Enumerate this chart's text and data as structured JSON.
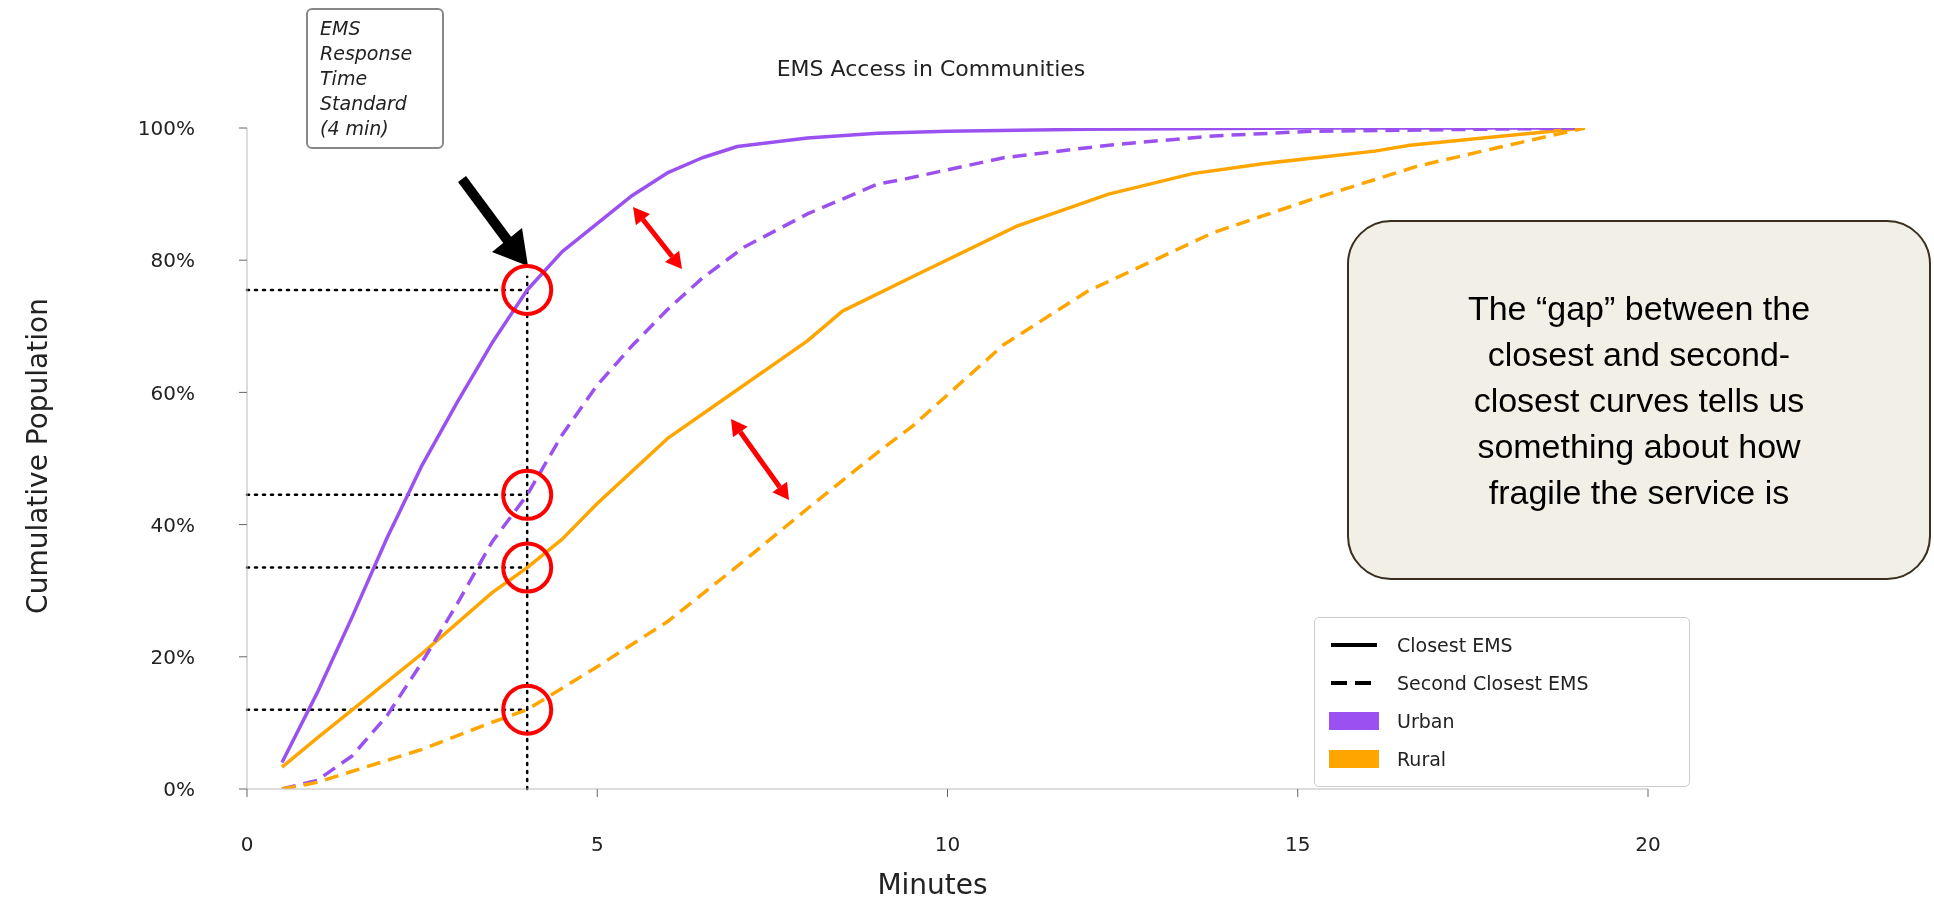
{
  "chart_data": {
    "type": "line",
    "title": "EMS Access in Communities",
    "xlabel": "Minutes",
    "ylabel": "Cumulative Population",
    "xlim": [
      0,
      20
    ],
    "xticks": [
      0,
      5,
      10,
      15,
      20
    ],
    "ylim": [
      0,
      100
    ],
    "yticks": [
      {
        "value": 0,
        "label": "0%"
      },
      {
        "value": 20,
        "label": "20%"
      },
      {
        "value": 40,
        "label": "40%"
      },
      {
        "value": 60,
        "label": "60%"
      },
      {
        "value": 80,
        "label": "80%"
      },
      {
        "value": 100,
        "label": "100%"
      }
    ],
    "grid": false,
    "legend": "bottom right",
    "marker": "none",
    "series": [
      {
        "name": "Urban",
        "color": "#9b51f0",
        "line_style": "solid",
        "x": [
          0.5,
          1,
          1.5,
          2,
          2.5,
          3,
          3.5,
          4,
          4.5,
          5.5,
          6,
          6.5,
          7,
          8,
          9,
          10,
          12,
          15,
          19.1
        ],
        "values": [
          4,
          14.5,
          26,
          38,
          49,
          58.5,
          67.5,
          75.5,
          81.3,
          89.8,
          93.2,
          95.5,
          97.2,
          98.5,
          99.2,
          99.5,
          99.8,
          100,
          100
        ]
      },
      {
        "name": "Rural",
        "color": "#ffa500",
        "line_style": "solid",
        "x": [
          0.5,
          1,
          1.6,
          2.5,
          3.5,
          4,
          4.5,
          5,
          6,
          7,
          8,
          8.5,
          9.5,
          11,
          12.3,
          13.5,
          14.5,
          16.1,
          16.6,
          19.1
        ],
        "values": [
          3.3,
          7.7,
          12.8,
          20.5,
          29.7,
          33.5,
          37.8,
          43.2,
          53,
          60.4,
          67.8,
          72.3,
          77.5,
          85.2,
          90,
          93.1,
          94.6,
          96.5,
          97.4,
          100
        ]
      },
      {
        "color": "#9b51f0",
        "line_style": "dashed",
        "x": [
          0.5,
          1,
          1.5,
          2,
          2.5,
          3,
          3.5,
          4,
          4.5,
          5,
          5.5,
          6,
          6.5,
          7.1,
          8,
          9,
          9.4,
          10.8,
          12.3,
          13.8,
          15.2,
          19.1
        ],
        "values": [
          0,
          1.3,
          5,
          11.1,
          19.2,
          28,
          37.4,
          44.5,
          53.6,
          61.1,
          67.1,
          72.5,
          77.3,
          82,
          87,
          91.5,
          92.3,
          95.5,
          97.4,
          98.8,
          99.5,
          100
        ]
      },
      {
        "color": "#ffa500",
        "line_style": "dashed",
        "x": [
          0.5,
          1,
          1.6,
          2.5,
          3.5,
          4,
          5,
          6,
          7,
          8,
          9,
          9.5,
          10.8,
          12,
          13.8,
          15.2,
          16.7,
          17.8,
          19.1
        ],
        "values": [
          0,
          1,
          3,
          6,
          10.1,
          12,
          18.5,
          25.3,
          33.7,
          42.4,
          50.9,
          54.9,
          67.2,
          75.3,
          84.2,
          89.2,
          94.2,
          96.9,
          100
        ]
      }
    ],
    "ref_lines": [
      {
        "axis": "x",
        "value": 4,
        "color": "#000000",
        "line_style": "dotted"
      },
      {
        "axis": "y",
        "value": 75.5,
        "color": "#000000",
        "line_style": "dotted"
      },
      {
        "axis": "y",
        "value": 44.5,
        "color": "#000000",
        "line_style": "dotted"
      },
      {
        "axis": "y",
        "value": 33.5,
        "color": "#000000",
        "line_style": "dotted"
      },
      {
        "axis": "y",
        "value": 12,
        "color": "#000000",
        "line_style": "dotted"
      }
    ],
    "annotations": [
      "EMS Response Time Standard (4 min)",
      "The “gap” between the closest and second-closest curves tells us something about how fragile the service is",
      "Closest EMS",
      "Second Closest EMS"
    ]
  }
}
